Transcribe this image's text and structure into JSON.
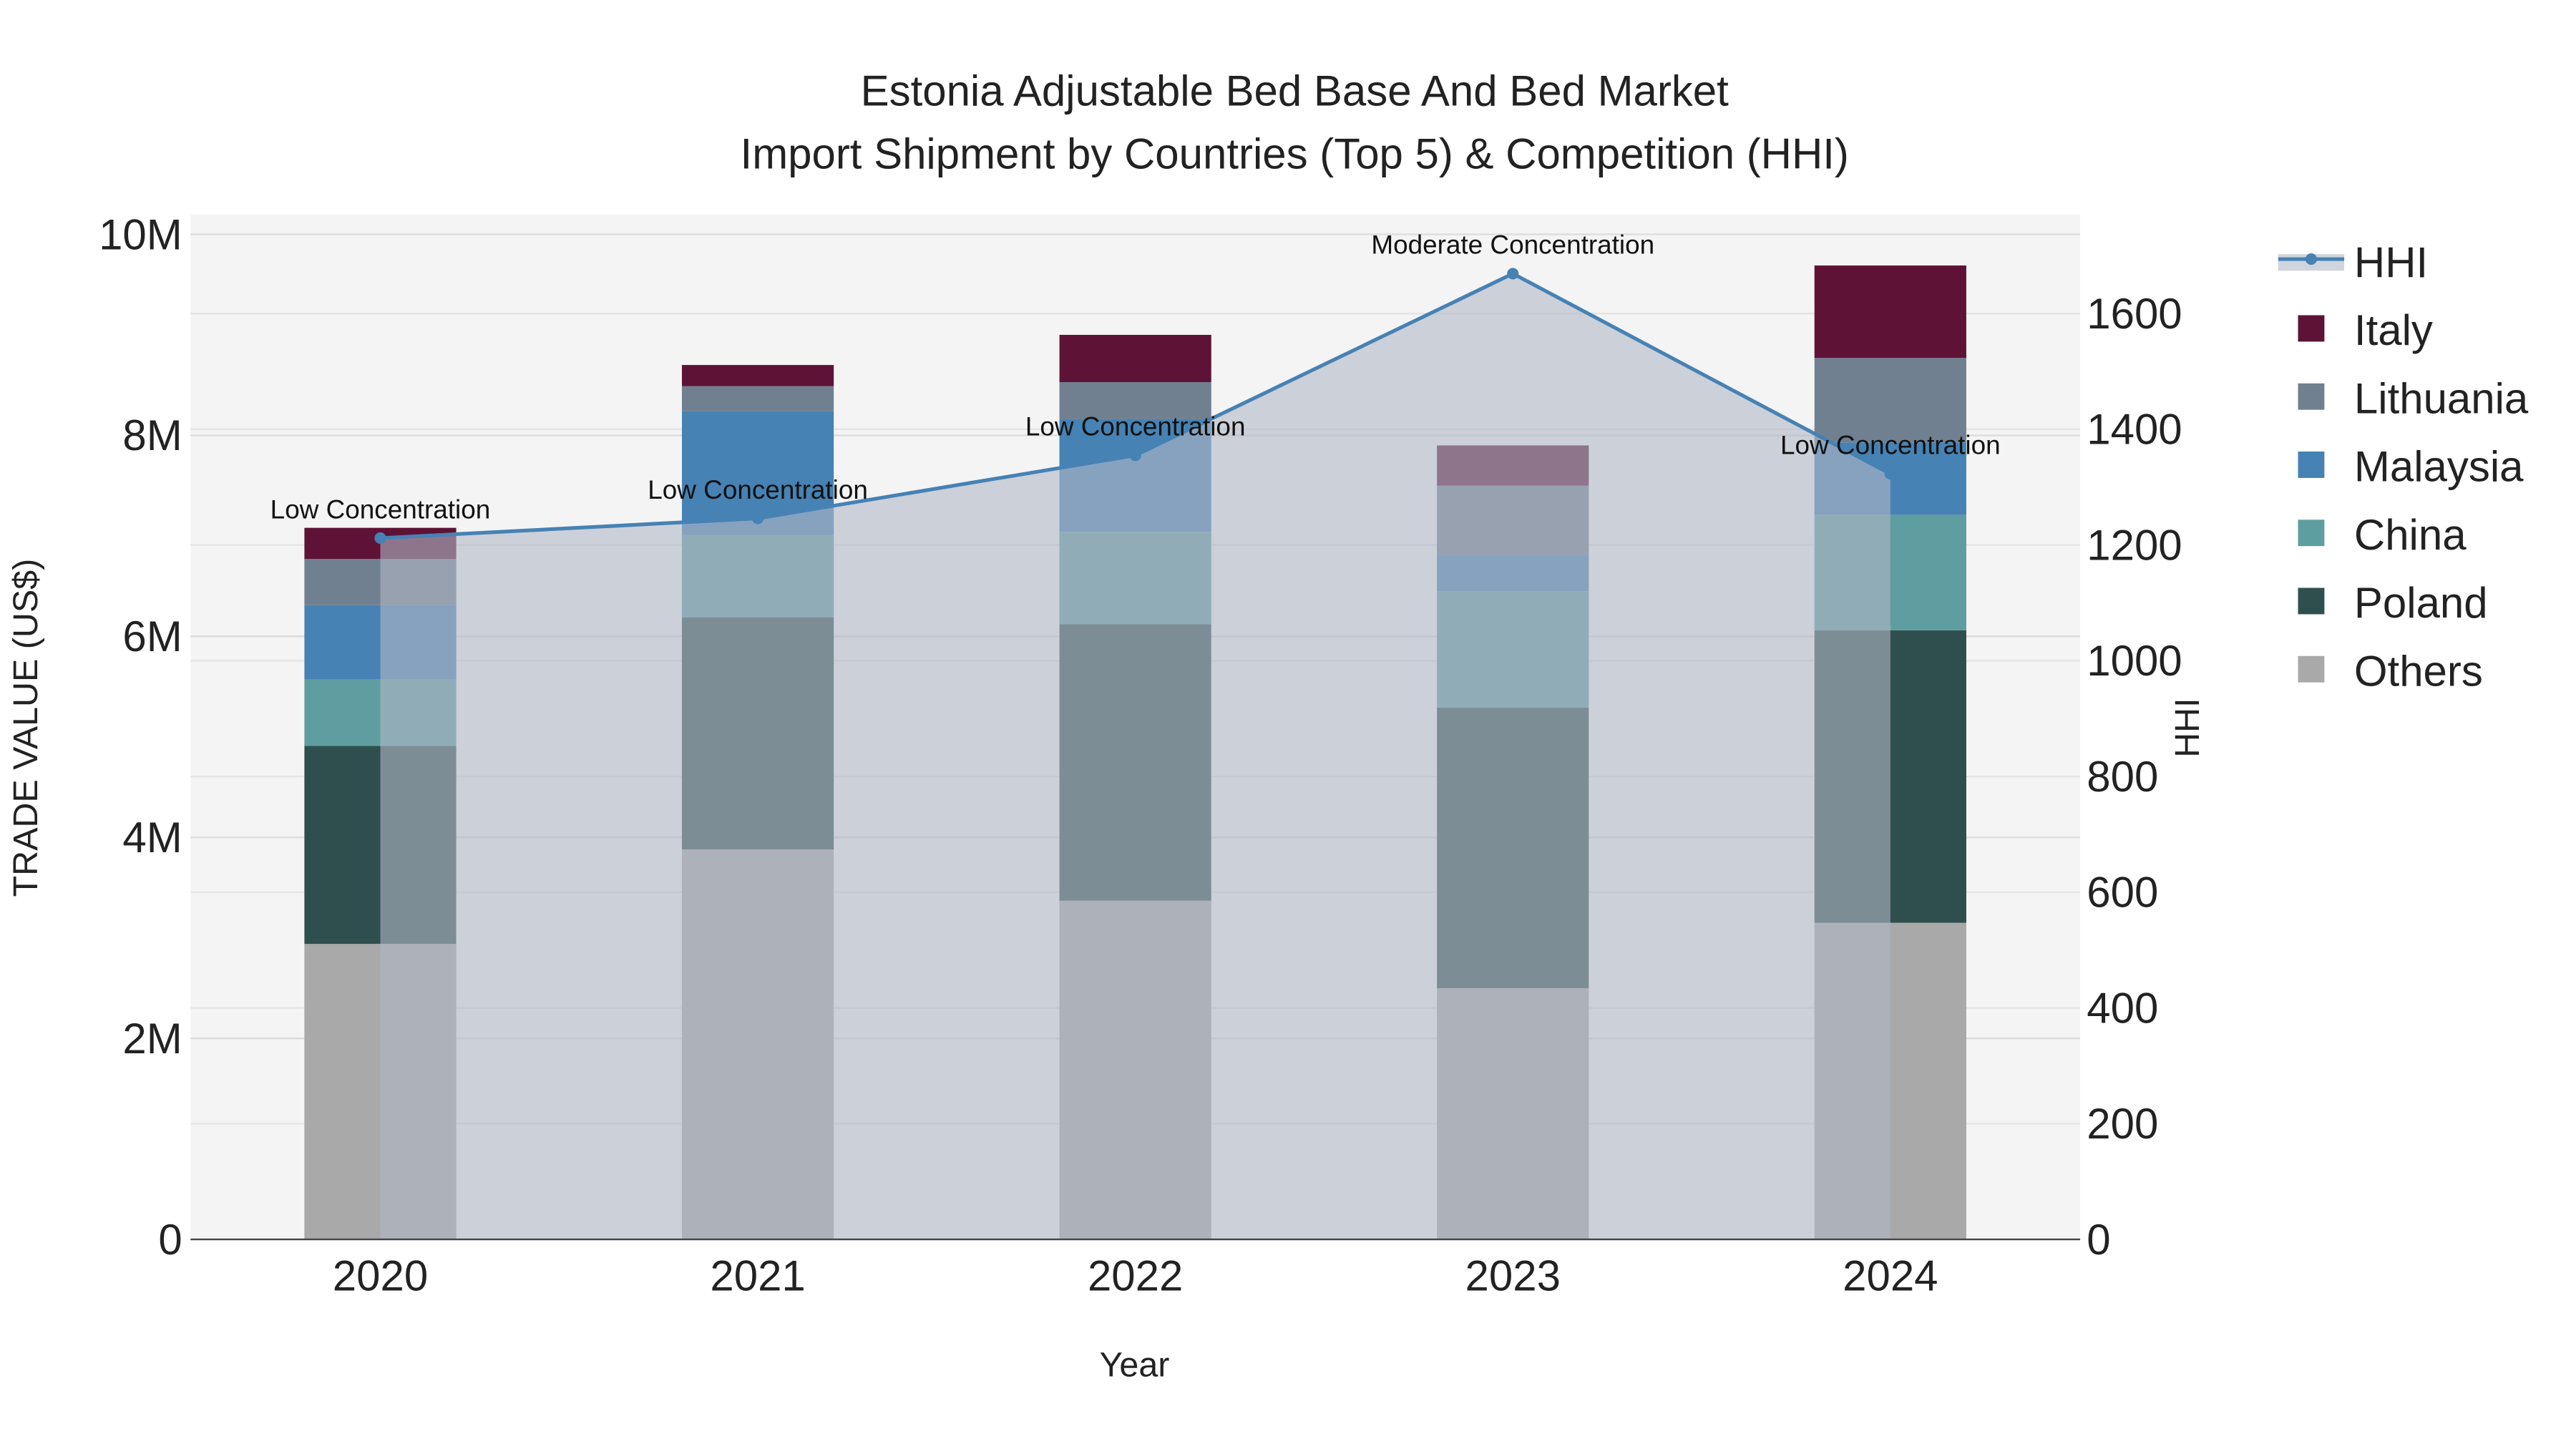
{
  "chart_data": {
    "type": "bar",
    "stacked": true,
    "title_line1": "Estonia Adjustable Bed Base And Bed Market",
    "title_line2": "Import Shipment by Countries (Top 5) & Competition (HHI)",
    "xlabel": "Year",
    "ylabel": "TRADE VALUE (US$)",
    "y2label": "HHI",
    "categories": [
      "2020",
      "2021",
      "2022",
      "2023",
      "2024"
    ],
    "ylim": [
      0,
      10000000
    ],
    "y2lim": [
      0,
      1760
    ],
    "yticks": [
      0,
      2000000,
      4000000,
      6000000,
      8000000,
      10000000
    ],
    "ytick_labels": [
      "0",
      "2M",
      "4M",
      "6M",
      "8M",
      "10M"
    ],
    "y2ticks": [
      0,
      200,
      400,
      600,
      800,
      1000,
      1200,
      1400,
      1600
    ],
    "y2tick_labels": [
      "0",
      "200",
      "400",
      "600",
      "800",
      "1000",
      "1200",
      "1400",
      "1600"
    ],
    "series": [
      {
        "name": "Others",
        "color": "#a9a9a9",
        "values": [
          2940000,
          3880000,
          3370000,
          2500000,
          3150000
        ]
      },
      {
        "name": "Poland",
        "color": "#2f4f4f",
        "values": [
          1970000,
          2310000,
          2750000,
          2790000,
          2910000
        ]
      },
      {
        "name": "China",
        "color": "#5f9ea0",
        "values": [
          660000,
          820000,
          920000,
          1160000,
          1150000
        ]
      },
      {
        "name": "Malaysia",
        "color": "#4682b4",
        "values": [
          740000,
          1230000,
          1120000,
          360000,
          720000
        ]
      },
      {
        "name": "Lithuania",
        "color": "#708090",
        "values": [
          460000,
          250000,
          370000,
          690000,
          840000
        ]
      },
      {
        "name": "Italy",
        "color": "#5e1236",
        "values": [
          310000,
          210000,
          470000,
          400000,
          920000
        ]
      }
    ],
    "hhi": {
      "name": "HHI",
      "color": "#4682b4",
      "values": [
        1212,
        1246,
        1355,
        1669,
        1323
      ],
      "annotations": [
        "Low Concentration",
        "Low Concentration",
        "Low Concentration",
        "Moderate Concentration",
        "Low Concentration"
      ]
    },
    "legend_order": [
      "HHI",
      "Italy",
      "Lithuania",
      "Malaysia",
      "China",
      "Poland",
      "Others"
    ],
    "legend_position": "right",
    "grid": true
  }
}
